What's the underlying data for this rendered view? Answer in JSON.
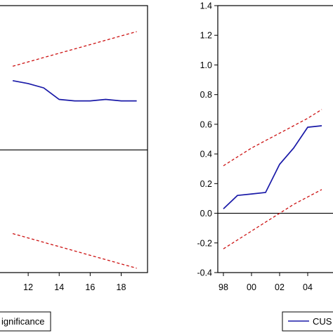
{
  "chart_data": [
    {
      "type": "line",
      "panel": "left",
      "x": [
        11,
        12,
        13,
        14,
        15,
        16,
        17,
        18,
        19
      ],
      "xlim": [
        10,
        19.7
      ],
      "ylim": [
        -0.85,
        1.0
      ],
      "x_tick_labels": [
        "12",
        "14",
        "16",
        "18"
      ],
      "x_tick_values": [
        12,
        14,
        16,
        18
      ],
      "series": [
        {
          "values": [
            0.48,
            0.46,
            0.43,
            0.35,
            0.34,
            0.34,
            0.35,
            0.34,
            0.34
          ],
          "style": "solid",
          "color": "#1a1aa8"
        },
        {
          "values": [
            0.58,
            0.61,
            0.64,
            0.67,
            0.7,
            0.73,
            0.76,
            0.79,
            0.82
          ],
          "style": "dashed",
          "color": "#cc1111"
        },
        {
          "values": [
            -0.58,
            -0.61,
            -0.64,
            -0.67,
            -0.7,
            -0.73,
            -0.76,
            -0.79,
            -0.82
          ],
          "style": "dashed",
          "color": "#cc1111"
        }
      ],
      "zero_line": 0,
      "legend": {
        "text": "ignificance",
        "placement": "bottom"
      }
    },
    {
      "type": "line",
      "panel": "right",
      "x": [
        1998,
        1999,
        2000,
        2001,
        2002,
        2003,
        2004,
        2005
      ],
      "xlim": [
        1997.6,
        2006
      ],
      "ylim": [
        -0.4,
        1.4
      ],
      "x_tick_labels": [
        "98",
        "00",
        "02",
        "04"
      ],
      "x_tick_values": [
        1998,
        2000,
        2002,
        2004
      ],
      "y_ticks": [
        -0.4,
        -0.2,
        0.0,
        0.2,
        0.4,
        0.6,
        0.8,
        1.0,
        1.2,
        1.4
      ],
      "y_tick_labels": [
        "-0.4",
        "-0.2",
        "0.0",
        "0.2",
        "0.4",
        "0.6",
        "0.8",
        "1.0",
        "1.2",
        "1.4"
      ],
      "series": [
        {
          "values": [
            0.03,
            0.12,
            0.13,
            0.14,
            0.33,
            0.44,
            0.58,
            0.59
          ],
          "style": "solid",
          "color": "#1a1aa8"
        },
        {
          "values": [
            0.32,
            0.38,
            0.44,
            0.49,
            0.54,
            0.59,
            0.64,
            0.7
          ],
          "style": "dashed",
          "color": "#cc1111"
        },
        {
          "values": [
            -0.24,
            -0.18,
            -0.12,
            -0.06,
            0.0,
            0.06,
            0.11,
            0.16
          ],
          "style": "dashed",
          "color": "#cc1111"
        }
      ],
      "zero_line": 0,
      "legend": {
        "text": "CUS",
        "placement": "bottom"
      }
    }
  ]
}
